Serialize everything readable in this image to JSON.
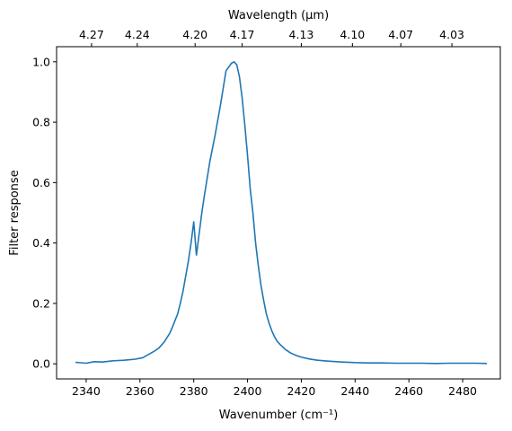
{
  "chart_data": {
    "type": "line",
    "xlabel": "Wavenumber (cm⁻¹)",
    "ylabel": "Filter response",
    "top_xlabel": "Wavelength (μm)",
    "xlim": [
      2329,
      2494
    ],
    "ylim": [
      -0.05,
      1.05
    ],
    "grid": false,
    "x_ticks": [
      2340,
      2360,
      2380,
      2400,
      2420,
      2440,
      2460,
      2480
    ],
    "x_tick_labels": [
      "2340",
      "2360",
      "2380",
      "2400",
      "2420",
      "2440",
      "2460",
      "2480"
    ],
    "y_ticks": [
      0.0,
      0.2,
      0.4,
      0.6,
      0.8,
      1.0
    ],
    "y_tick_labels": [
      "0.0",
      "0.2",
      "0.4",
      "0.6",
      "0.8",
      "1.0"
    ],
    "top_ticks": [
      {
        "wavenumber": 2342,
        "label": "4.27"
      },
      {
        "wavenumber": 2359,
        "label": "4.24"
      },
      {
        "wavenumber": 2380.5,
        "label": "4.20"
      },
      {
        "wavenumber": 2398,
        "label": "4.17"
      },
      {
        "wavenumber": 2420,
        "label": "4.13"
      },
      {
        "wavenumber": 2439,
        "label": "4.10"
      },
      {
        "wavenumber": 2457,
        "label": "4.07"
      },
      {
        "wavenumber": 2476,
        "label": "4.03"
      }
    ],
    "series": [
      {
        "color": "#1f77b4",
        "x": [
          2336,
          2340,
          2343,
          2346,
          2350,
          2354,
          2358,
          2361,
          2363,
          2365,
          2367,
          2369,
          2371,
          2372,
          2374,
          2375,
          2376,
          2377,
          2378,
          2379,
          2380,
          2381,
          2382,
          2383,
          2384,
          2386,
          2388,
          2390,
          2392,
          2394,
          2395,
          2396,
          2397,
          2398,
          2399,
          2400,
          2401,
          2402,
          2403,
          2404,
          2405,
          2406,
          2407,
          2408,
          2409,
          2410,
          2411,
          2412,
          2414,
          2416,
          2418,
          2420,
          2423,
          2426,
          2430,
          2435,
          2440,
          2445,
          2450,
          2455,
          2460,
          2465,
          2470,
          2475,
          2480,
          2485,
          2489
        ],
        "y": [
          0.005,
          0.002,
          0.007,
          0.006,
          0.01,
          0.012,
          0.015,
          0.02,
          0.03,
          0.04,
          0.052,
          0.072,
          0.1,
          0.12,
          0.165,
          0.2,
          0.24,
          0.29,
          0.34,
          0.4,
          0.47,
          0.36,
          0.43,
          0.5,
          0.56,
          0.67,
          0.76,
          0.86,
          0.97,
          0.995,
          1.0,
          0.99,
          0.95,
          0.88,
          0.79,
          0.69,
          0.58,
          0.5,
          0.4,
          0.325,
          0.26,
          0.21,
          0.165,
          0.135,
          0.11,
          0.09,
          0.075,
          0.065,
          0.048,
          0.036,
          0.028,
          0.022,
          0.016,
          0.012,
          0.009,
          0.006,
          0.004,
          0.003,
          0.003,
          0.002,
          0.002,
          0.002,
          0.001,
          0.002,
          0.002,
          0.002,
          0.001
        ]
      }
    ]
  }
}
